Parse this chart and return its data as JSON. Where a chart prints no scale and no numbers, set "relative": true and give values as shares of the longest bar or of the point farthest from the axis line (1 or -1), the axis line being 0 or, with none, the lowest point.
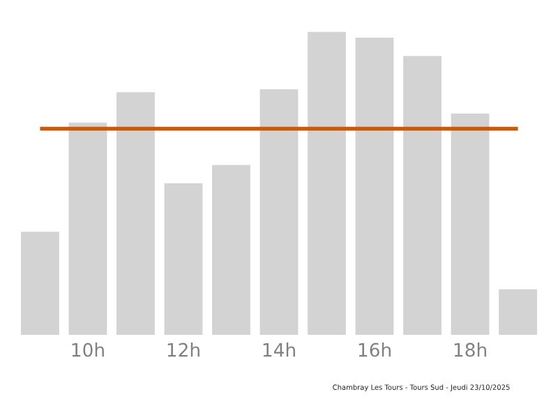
{
  "chart_data": {
    "type": "bar",
    "relative": true,
    "categories": [
      null,
      "10h",
      null,
      "12h",
      null,
      "14h",
      null,
      "16h",
      null,
      "18h",
      null
    ],
    "values": [
      0.34,
      0.7,
      0.8,
      0.5,
      0.56,
      0.81,
      1,
      0.98,
      0.92,
      0.73,
      0.15
    ],
    "color": "#d3d3d3",
    "ref_lines": [
      {
        "axis": "y",
        "value": 0.68,
        "color": "#c55a11",
        "line_style": "solid"
      }
    ],
    "grid": false,
    "legend": false,
    "annotations": [
      "Chambray Les Tours - Tours Sud - Jeudi 23/10/2025"
    ]
  }
}
